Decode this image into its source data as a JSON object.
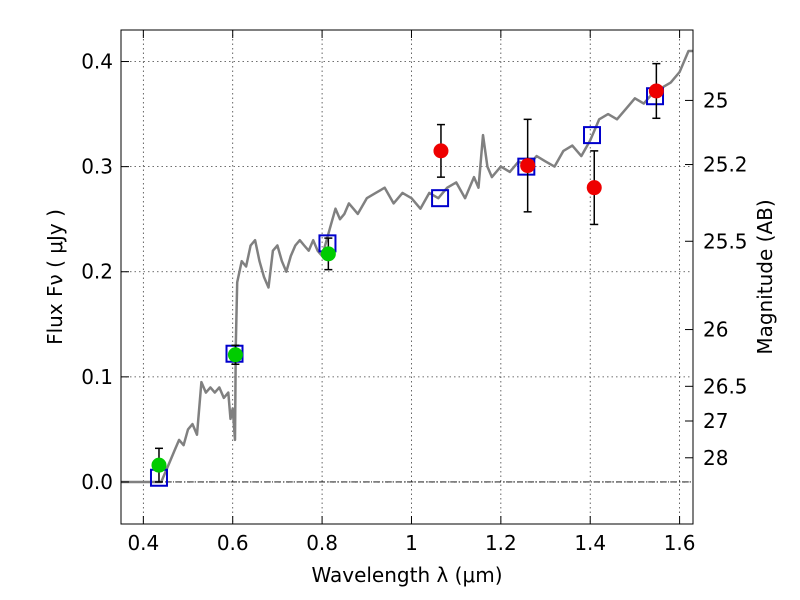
{
  "chart_data": {
    "type": "scatter",
    "xlabel": "Wavelength  λ (μm)",
    "ylabel": "Flux  Fν ( μJy )",
    "y2label": "Magnitude (AB)",
    "xlim": [
      0.35,
      1.63
    ],
    "ylim": [
      -0.04,
      0.43
    ],
    "xticks": [
      0.4,
      0.6,
      0.8,
      1.0,
      1.2,
      1.4,
      1.6
    ],
    "xtick_labels": [
      "0.4",
      "0.6",
      "0.8",
      "1",
      "1.2",
      "1.4",
      "1.6"
    ],
    "yticks": [
      0.0,
      0.1,
      0.2,
      0.3,
      0.4
    ],
    "ytick_labels": [
      "0.0",
      "0.1",
      "0.2",
      "0.3",
      "0.4"
    ],
    "mag_ticks": [
      {
        "label": "25",
        "flux": 0.363
      },
      {
        "label": "25.2",
        "flux": 0.302
      },
      {
        "label": "25.5",
        "flux": 0.229
      },
      {
        "label": "26",
        "flux": 0.145
      },
      {
        "label": "26.5",
        "flux": 0.091
      },
      {
        "label": "27",
        "flux": 0.058
      },
      {
        "label": "28",
        "flux": 0.023
      }
    ],
    "zero_line": 0.0,
    "grid": true,
    "colors": {
      "model": "#808080",
      "model_photometry": "#0000cc",
      "optical_detections": "#00cc00",
      "nir_detections": "#ee0000",
      "error_bars": "#000000"
    },
    "series": [
      {
        "name": "model_spectrum",
        "style": "line",
        "x": [
          0.35,
          0.44,
          0.46,
          0.47,
          0.48,
          0.49,
          0.5,
          0.51,
          0.52,
          0.53,
          0.54,
          0.55,
          0.56,
          0.57,
          0.58,
          0.59,
          0.595,
          0.6,
          0.605,
          0.607,
          0.61,
          0.62,
          0.63,
          0.64,
          0.65,
          0.66,
          0.67,
          0.68,
          0.69,
          0.7,
          0.71,
          0.72,
          0.73,
          0.74,
          0.75,
          0.76,
          0.77,
          0.78,
          0.79,
          0.8,
          0.81,
          0.82,
          0.83,
          0.84,
          0.85,
          0.86,
          0.87,
          0.88,
          0.9,
          0.92,
          0.94,
          0.96,
          0.98,
          1.0,
          1.02,
          1.04,
          1.06,
          1.08,
          1.1,
          1.12,
          1.14,
          1.15,
          1.16,
          1.17,
          1.18,
          1.2,
          1.22,
          1.24,
          1.26,
          1.28,
          1.3,
          1.32,
          1.34,
          1.36,
          1.38,
          1.4,
          1.42,
          1.44,
          1.46,
          1.48,
          1.5,
          1.52,
          1.54,
          1.56,
          1.58,
          1.6,
          1.62,
          1.63
        ],
        "y": [
          0.0,
          0.0,
          0.02,
          0.03,
          0.04,
          0.035,
          0.05,
          0.055,
          0.045,
          0.095,
          0.085,
          0.09,
          0.085,
          0.09,
          0.08,
          0.085,
          0.06,
          0.07,
          0.04,
          0.13,
          0.19,
          0.21,
          0.205,
          0.225,
          0.23,
          0.21,
          0.195,
          0.185,
          0.22,
          0.225,
          0.21,
          0.2,
          0.215,
          0.225,
          0.23,
          0.225,
          0.22,
          0.23,
          0.22,
          0.215,
          0.23,
          0.245,
          0.26,
          0.25,
          0.255,
          0.265,
          0.26,
          0.255,
          0.27,
          0.275,
          0.28,
          0.265,
          0.275,
          0.27,
          0.26,
          0.275,
          0.27,
          0.28,
          0.285,
          0.27,
          0.29,
          0.28,
          0.33,
          0.3,
          0.29,
          0.3,
          0.295,
          0.305,
          0.3,
          0.31,
          0.305,
          0.3,
          0.315,
          0.32,
          0.31,
          0.325,
          0.345,
          0.35,
          0.345,
          0.355,
          0.365,
          0.36,
          0.37,
          0.375,
          0.38,
          0.39,
          0.41,
          0.41
        ]
      },
      {
        "name": "model_band_photometry",
        "style": "open_square",
        "x": [
          0.435,
          0.604,
          0.812,
          1.064,
          1.257,
          1.404,
          1.545
        ],
        "y": [
          0.004,
          0.122,
          0.227,
          0.27,
          0.3,
          0.33,
          0.367
        ]
      },
      {
        "name": "optical_detections",
        "style": "filled_circle",
        "x": [
          0.435,
          0.606,
          0.814
        ],
        "y": [
          0.016,
          0.121,
          0.217
        ],
        "yerr": [
          0.016,
          0.009,
          0.015
        ]
      },
      {
        "name": "nir_detections",
        "style": "filled_circle",
        "x": [
          1.066,
          1.26,
          1.409,
          1.548
        ],
        "y": [
          0.315,
          0.301,
          0.28,
          0.372
        ],
        "yerr": [
          0.025,
          0.044,
          0.035,
          0.026
        ]
      }
    ]
  }
}
